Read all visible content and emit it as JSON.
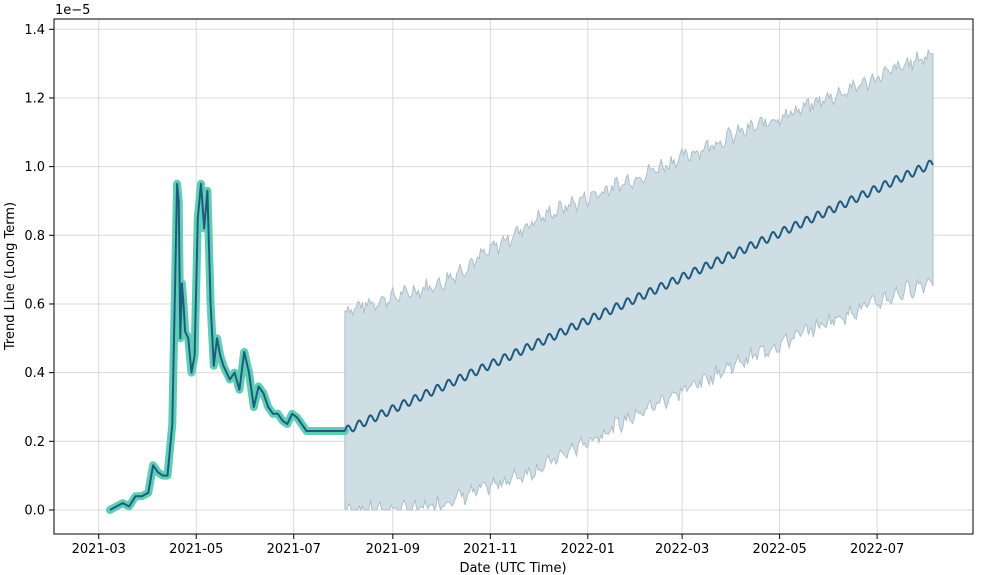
{
  "chart_data": {
    "type": "line",
    "xlabel": "Date (UTC Time)",
    "ylabel": "Trend Line (Long Term)",
    "y_offset_text": "1e−5",
    "y_scale_factor": 1e-05,
    "xlim": [
      "2021-02-01",
      "2022-08-30"
    ],
    "ylim": [
      -0.07,
      1.43
    ],
    "grid": true,
    "x_ticks": [
      {
        "date": "2021-03-01",
        "label": "2021-03"
      },
      {
        "date": "2021-05-01",
        "label": "2021-05"
      },
      {
        "date": "2021-07-01",
        "label": "2021-07"
      },
      {
        "date": "2021-09-01",
        "label": "2021-09"
      },
      {
        "date": "2021-11-01",
        "label": "2021-11"
      },
      {
        "date": "2022-01-01",
        "label": "2022-01"
      },
      {
        "date": "2022-03-01",
        "label": "2022-03"
      },
      {
        "date": "2022-05-01",
        "label": "2022-05"
      },
      {
        "date": "2022-07-01",
        "label": "2022-07"
      }
    ],
    "y_ticks": [
      {
        "value": 0.0,
        "label": "0.0"
      },
      {
        "value": 0.2,
        "label": "0.2"
      },
      {
        "value": 0.4,
        "label": "0.4"
      },
      {
        "value": 0.6,
        "label": "0.6"
      },
      {
        "value": 0.8,
        "label": "0.8"
      },
      {
        "value": 1.0,
        "label": "1.0"
      },
      {
        "value": 1.2,
        "label": "1.2"
      },
      {
        "value": 1.4,
        "label": "1.4"
      }
    ],
    "colors": {
      "historical_highlight": "#5ecfb5",
      "trend_line": "#1f5b7f",
      "band_fill": "#cfdde5",
      "band_edge": "#aebfca"
    },
    "series": [
      {
        "role": "historical",
        "x": [
          "2021-03-08",
          "2021-03-12",
          "2021-03-16",
          "2021-03-20",
          "2021-03-24",
          "2021-03-28",
          "2021-04-01",
          "2021-04-04",
          "2021-04-07",
          "2021-04-10",
          "2021-04-13",
          "2021-04-16",
          "2021-04-19",
          "2021-04-20",
          "2021-04-21",
          "2021-04-22",
          "2021-04-23",
          "2021-04-24",
          "2021-04-26",
          "2021-04-28",
          "2021-04-30",
          "2021-05-02",
          "2021-05-04",
          "2021-05-06",
          "2021-05-08",
          "2021-05-10",
          "2021-05-12",
          "2021-05-14",
          "2021-05-16",
          "2021-05-18",
          "2021-05-20",
          "2021-05-22",
          "2021-05-25",
          "2021-05-28",
          "2021-05-31",
          "2021-06-03",
          "2021-06-06",
          "2021-06-09",
          "2021-06-12",
          "2021-06-15",
          "2021-06-18",
          "2021-06-21",
          "2021-06-24",
          "2021-06-27",
          "2021-06-30",
          "2021-07-03",
          "2021-07-06",
          "2021-07-09",
          "2021-07-12",
          "2021-07-15",
          "2021-07-18",
          "2021-07-21",
          "2021-07-24",
          "2021-07-27",
          "2021-07-30",
          "2021-08-02"
        ],
        "y": [
          0.0,
          0.01,
          0.02,
          0.01,
          0.04,
          0.04,
          0.05,
          0.13,
          0.11,
          0.1,
          0.1,
          0.25,
          0.95,
          0.9,
          0.5,
          0.66,
          0.6,
          0.52,
          0.5,
          0.4,
          0.45,
          0.85,
          0.95,
          0.82,
          0.93,
          0.6,
          0.42,
          0.5,
          0.45,
          0.42,
          0.4,
          0.38,
          0.4,
          0.35,
          0.46,
          0.4,
          0.3,
          0.36,
          0.34,
          0.3,
          0.28,
          0.28,
          0.26,
          0.25,
          0.28,
          0.27,
          0.25,
          0.23,
          0.23,
          0.23,
          0.23,
          0.23,
          0.23,
          0.23,
          0.23,
          0.23
        ]
      },
      {
        "role": "forecast",
        "x": [
          "2021-08-02",
          "2022-08-05"
        ],
        "y": [
          0.23,
          1.01
        ],
        "weekly_amplitude": 0.012
      },
      {
        "role": "uncertainty_lower",
        "x": [
          "2021-08-02",
          "2021-09-15",
          "2021-10-15",
          "2021-12-01",
          "2022-02-01",
          "2022-04-01",
          "2022-06-01",
          "2022-08-05"
        ],
        "y": [
          0.0,
          0.0,
          0.04,
          0.12,
          0.28,
          0.42,
          0.55,
          0.67
        ]
      },
      {
        "role": "uncertainty_upper",
        "x": [
          "2021-08-02",
          "2021-10-01",
          "2021-12-01",
          "2022-02-01",
          "2022-04-01",
          "2022-06-01",
          "2022-08-05"
        ],
        "y": [
          0.58,
          0.66,
          0.85,
          0.97,
          1.09,
          1.2,
          1.33
        ]
      }
    ]
  }
}
